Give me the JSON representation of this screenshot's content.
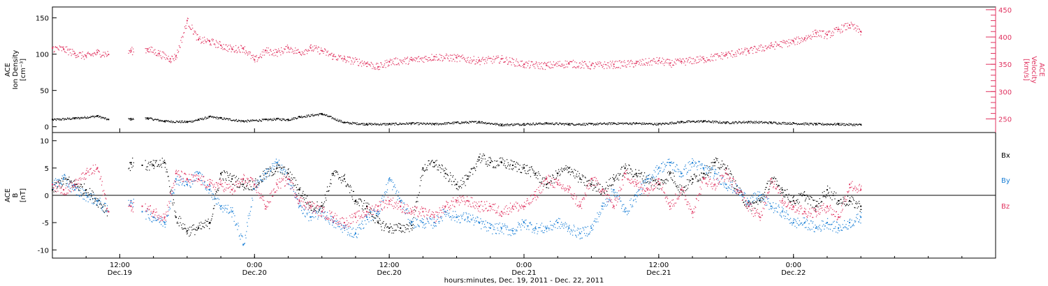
{
  "colors": {
    "density": "#000000",
    "velocity": "#e0325f",
    "bx": "#000000",
    "by": "#1a7fd6",
    "bz": "#e0325f"
  },
  "x_axis": {
    "label": "hours:minutes, Dec. 19, 2011 - Dec. 22, 2011",
    "range_hours": [
      0,
      84
    ],
    "ticks": [
      {
        "hour": 6,
        "time": "12:00",
        "day": "Dec.19"
      },
      {
        "hour": 18,
        "time": "0:00",
        "day": "Dec.20"
      },
      {
        "hour": 30,
        "time": "12:00",
        "day": "Dec.20"
      },
      {
        "hour": 42,
        "time": "0:00",
        "day": "Dec.21"
      },
      {
        "hour": 54,
        "time": "12:00",
        "day": "Dec.21"
      },
      {
        "hour": 66,
        "time": "0:00",
        "day": "Dec.22"
      }
    ]
  },
  "top_panel": {
    "left_label": [
      "ACE",
      "Ion Density",
      "[cm⁻³]"
    ],
    "right_label": [
      "ACE",
      "Velocity",
      "[km/s]"
    ],
    "left_ticks": [
      "0",
      "50",
      "100",
      "150"
    ],
    "right_ticks": [
      "250",
      "300",
      "350",
      "400",
      "450"
    ]
  },
  "bottom_panel": {
    "left_label": [
      "ACE",
      "B",
      "[nT]"
    ],
    "left_ticks": [
      "-10",
      "-5",
      "0",
      "5",
      "10"
    ],
    "legend": [
      "Bx",
      "By",
      "Bz"
    ]
  },
  "chart_data": [
    {
      "type": "scatter",
      "panel": "top",
      "xlabel": "hours:minutes, Dec. 19, 2011 - Dec. 22, 2011",
      "ylabel_left": "ACE Ion Density [cm-3]",
      "ylabel_right": "ACE Velocity [km/s]",
      "ylim_left": [
        -8,
        165
      ],
      "ylim_right": [
        225,
        455
      ],
      "x_units": "hours since Dec.19 06:00 (plot start)",
      "series": [
        {
          "name": "Ion Density",
          "axis": "left",
          "x": [
            0,
            2,
            4,
            5,
            7,
            8.5,
            10,
            12,
            13,
            14,
            15,
            17,
            19,
            20,
            21,
            22,
            24,
            26,
            28,
            30,
            32,
            34,
            36,
            38,
            40,
            42,
            44,
            46,
            48,
            50,
            52,
            54,
            56,
            58,
            60,
            62,
            64,
            66,
            68,
            70,
            72
          ],
          "y": [
            10,
            12,
            15,
            10,
            11,
            12,
            8,
            7,
            10,
            14,
            12,
            8,
            10,
            11,
            10,
            14,
            18,
            6,
            4,
            4,
            5,
            4,
            6,
            7,
            3,
            4,
            5,
            4,
            4,
            5,
            5,
            4,
            7,
            8,
            6,
            7,
            6,
            5,
            4,
            4,
            3
          ]
        },
        {
          "name": "Velocity",
          "axis": "right",
          "x": [
            0,
            1,
            2,
            3,
            4,
            5,
            7,
            8.5,
            9.5,
            10.5,
            11,
            12,
            13,
            14,
            15,
            16,
            17,
            18,
            19,
            20,
            21,
            22,
            23,
            24,
            25,
            26,
            28,
            29,
            30,
            32,
            34,
            36,
            38,
            40,
            42,
            44,
            46,
            48,
            50,
            52,
            54,
            55,
            56,
            58,
            60,
            62,
            64,
            66,
            67,
            68,
            69,
            70,
            71,
            72
          ],
          "y": [
            380,
            378,
            370,
            365,
            372,
            368,
            375,
            378,
            370,
            360,
            365,
            430,
            395,
            392,
            385,
            378,
            380,
            358,
            375,
            372,
            380,
            372,
            380,
            375,
            365,
            360,
            352,
            345,
            355,
            358,
            364,
            362,
            357,
            360,
            350,
            348,
            352,
            348,
            350,
            352,
            357,
            352,
            355,
            360,
            368,
            375,
            384,
            392,
            398,
            408,
            404,
            414,
            422,
            410
          ]
        }
      ]
    },
    {
      "type": "scatter",
      "panel": "bottom",
      "ylabel": "ACE B [nT]",
      "ylim": [
        -11.5,
        11.5
      ],
      "x_units": "hours since Dec.19 06:00 (plot start)",
      "series": [
        {
          "name": "Bx",
          "x": [
            0,
            1,
            2,
            3,
            4,
            5,
            7,
            8,
            9,
            10,
            11,
            12,
            13,
            14,
            15,
            16,
            17,
            18,
            19,
            20,
            21,
            22,
            23,
            24,
            25,
            26,
            27,
            28,
            29,
            30,
            31,
            32,
            33,
            34,
            35,
            36,
            37,
            38,
            39,
            40,
            41,
            42,
            43,
            44,
            45,
            46,
            47,
            48,
            49,
            50,
            51,
            52,
            53,
            54,
            55,
            56,
            57,
            58,
            59,
            60,
            61,
            62,
            63,
            64,
            65,
            66,
            67,
            68,
            69,
            70,
            71,
            72
          ],
          "y": [
            1,
            3,
            2,
            1,
            -1,
            -3,
            6,
            5.5,
            5.5,
            6,
            -4,
            -6.5,
            -6,
            -5,
            4,
            3,
            2,
            2,
            4,
            5,
            4,
            1,
            -2,
            -2,
            4,
            3,
            -1,
            -2,
            -5,
            -6,
            -6,
            -5.5,
            5,
            6,
            4,
            2,
            3,
            7,
            6,
            6,
            5.5,
            5,
            4,
            2,
            4,
            5,
            3,
            2,
            1,
            3,
            5,
            4,
            3,
            2,
            4,
            1,
            3,
            4,
            6,
            5,
            1,
            -2,
            -1,
            3,
            1,
            -1,
            0,
            -2,
            1,
            -1,
            -1,
            -2
          ]
        },
        {
          "name": "By",
          "x": [
            0,
            1,
            2,
            3,
            4,
            5,
            7,
            8,
            9,
            10,
            11,
            12,
            13,
            14,
            15,
            16,
            17,
            18,
            19,
            20,
            21,
            22,
            23,
            24,
            25,
            26,
            27,
            28,
            29,
            30,
            31,
            32,
            33,
            34,
            35,
            36,
            37,
            38,
            39,
            40,
            41,
            42,
            43,
            44,
            45,
            46,
            47,
            48,
            49,
            50,
            51,
            52,
            53,
            54,
            55,
            56,
            57,
            58,
            59,
            60,
            61,
            62,
            63,
            64,
            65,
            66,
            67,
            68,
            69,
            70,
            71,
            72
          ],
          "y": [
            2,
            3,
            1,
            0,
            -1,
            -3,
            -1,
            -3,
            -4,
            -5,
            3,
            2,
            4,
            1,
            -2,
            -3,
            -9,
            2,
            4,
            6,
            3,
            -2,
            -4,
            -3,
            -5,
            -6,
            -7,
            -4,
            -3,
            3,
            -1,
            -5,
            -5,
            -5,
            -3,
            -4,
            -4,
            -5,
            -6,
            -6,
            -6.5,
            -5,
            -6,
            -6,
            -5,
            -6,
            -7,
            -6,
            -2,
            1,
            -3,
            0,
            3,
            5,
            6,
            4,
            6,
            5,
            4,
            2,
            1,
            -1,
            0,
            -2,
            -3,
            -5,
            -5,
            -6,
            -5,
            -6,
            -5,
            -4
          ]
        },
        {
          "name": "Bz",
          "x": [
            0,
            1,
            2,
            3,
            4,
            5,
            7,
            8,
            9,
            10,
            11,
            12,
            13,
            14,
            15,
            16,
            17,
            18,
            19,
            20,
            21,
            22,
            23,
            24,
            25,
            26,
            27,
            28,
            29,
            30,
            31,
            32,
            33,
            34,
            35,
            36,
            37,
            38,
            39,
            40,
            41,
            42,
            43,
            44,
            45,
            46,
            47,
            48,
            49,
            50,
            51,
            52,
            53,
            54,
            55,
            56,
            57,
            58,
            59,
            60,
            61,
            62,
            63,
            64,
            65,
            66,
            67,
            68,
            69,
            70,
            71,
            72
          ],
          "y": [
            2,
            1,
            2,
            4,
            5,
            -3,
            -2,
            -2,
            -3,
            -4,
            4,
            3,
            3,
            2,
            2,
            1,
            3,
            2,
            -2,
            2,
            3,
            -1,
            -2,
            -3,
            -4,
            -5,
            -4,
            -3,
            -2,
            -1,
            -2,
            -3,
            -3,
            -4,
            -2,
            -1,
            -1,
            -2,
            -2,
            -3,
            -2,
            -2,
            0,
            3,
            2,
            1,
            -2,
            3,
            1,
            -2,
            4,
            2,
            1,
            3,
            -2,
            1,
            -3,
            3,
            2,
            4,
            1,
            -2,
            -4,
            3,
            -1,
            -2,
            -3,
            -3,
            -2,
            -4,
            2,
            1
          ]
        }
      ]
    }
  ]
}
